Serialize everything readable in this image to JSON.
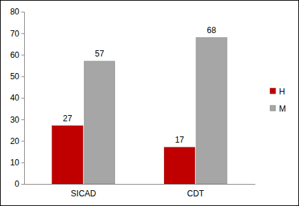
{
  "chart_data": {
    "type": "bar",
    "categories": [
      "SICAD",
      "CDT"
    ],
    "series": [
      {
        "name": "H",
        "color": "#c00000",
        "values": [
          27,
          17
        ]
      },
      {
        "name": "M",
        "color": "#a6a6a6",
        "values": [
          57,
          68
        ]
      }
    ],
    "ylim": [
      0,
      80
    ],
    "yticks": [
      0,
      10,
      20,
      30,
      40,
      50,
      60,
      70,
      80
    ],
    "grid": false,
    "legend": "right",
    "data_labels": true
  }
}
